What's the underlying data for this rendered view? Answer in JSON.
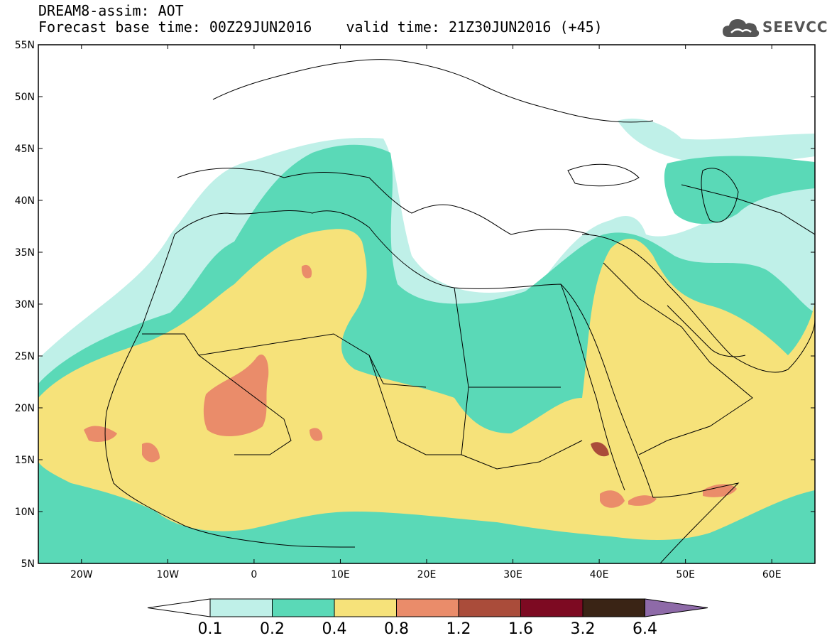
{
  "header": {
    "title": "DREAM8-assim: AOT",
    "base_time_label": "Forecast base time: 00Z29JUN2016",
    "valid_time_label": "valid time: 21Z30JUN2016 (+45)"
  },
  "logo": {
    "text": "SEEVCCC",
    "icon": "cloud-icon"
  },
  "axes": {
    "lat_ticks": [
      "55N",
      "50N",
      "45N",
      "40N",
      "35N",
      "30N",
      "25N",
      "20N",
      "15N",
      "10N",
      "5N"
    ],
    "lon_ticks": [
      "20W",
      "10W",
      "0",
      "10E",
      "20E",
      "30E",
      "40E",
      "50E",
      "60E"
    ],
    "lat_range": [
      5,
      55
    ],
    "lon_range": [
      -25,
      65
    ]
  },
  "colorbar": {
    "levels": [
      "0.1",
      "0.2",
      "0.4",
      "0.8",
      "1.2",
      "1.6",
      "3.2",
      "6.4"
    ],
    "colors": [
      "#bff0e8",
      "#5ad9b7",
      "#f6e27a",
      "#ea8c6a",
      "#aa4c3a",
      "#7d0a22",
      "#3a2415",
      "#8e6aa8"
    ]
  },
  "colors": {
    "light": "#bff0e8",
    "medium": "#5ad9b7",
    "yellow": "#f6e27a",
    "salmon": "#ea8c6a",
    "brick": "#aa4c3a",
    "coast": "#000000"
  }
}
